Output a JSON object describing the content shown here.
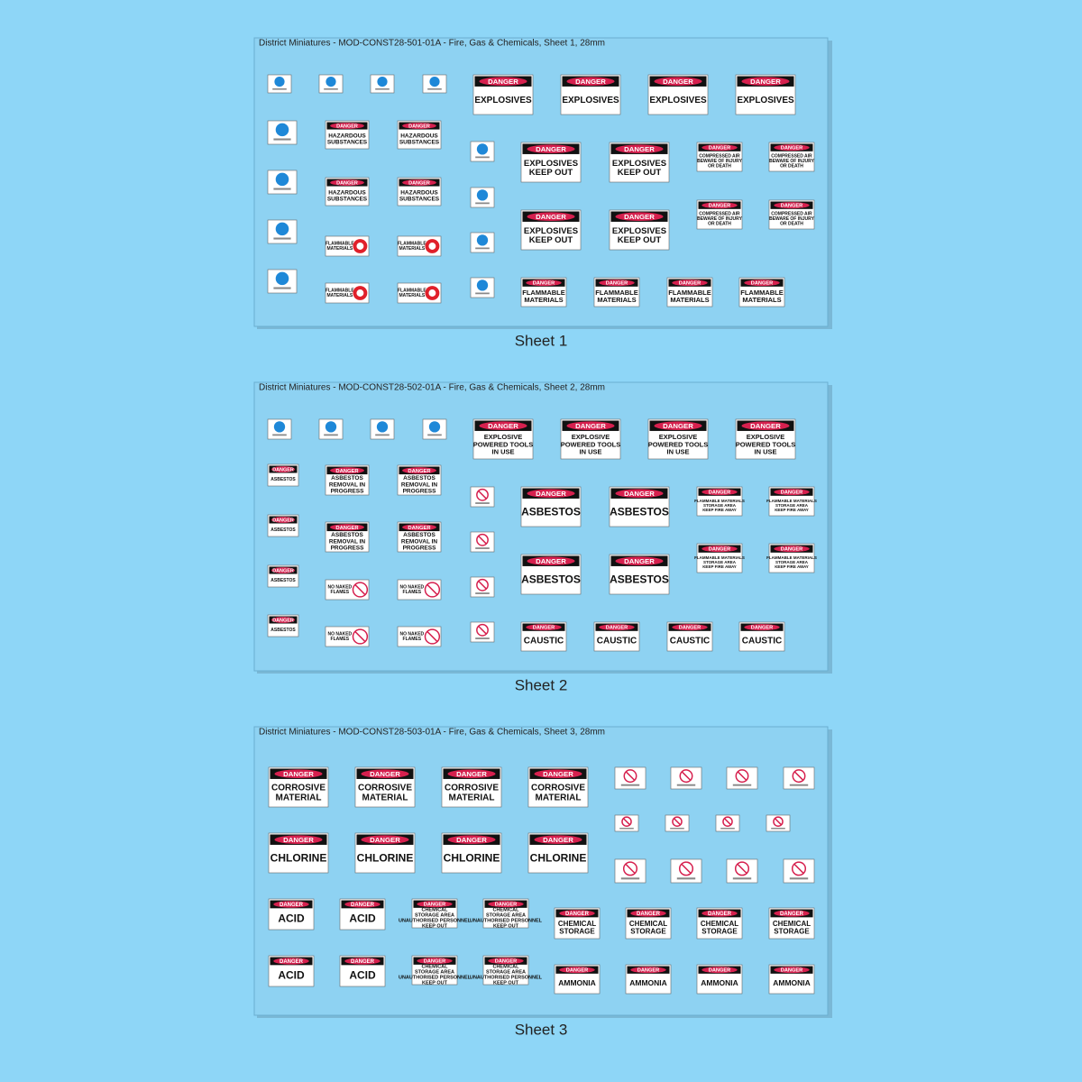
{
  "sheets": [
    {
      "title": "District Miniatures - MOD-CONST28-501-01A - Fire, Gas & Chemicals, Sheet 1, 28mm",
      "caption": "Sheet 1",
      "signs": [
        {
          "header": "DANGER",
          "lines": [
            "EXPLOSIVES"
          ]
        },
        {
          "header": "DANGER",
          "lines": [
            "HAZARDOUS",
            "SUBSTANCES"
          ]
        },
        {
          "header": "DANGER",
          "lines": [
            "EXPLOSIVES",
            "KEEP OUT"
          ]
        },
        {
          "header": "DANGER",
          "lines": [
            "COMPRESSED AIR",
            "BEWARE OF INJURY",
            "OR DEATH"
          ]
        },
        {
          "lines": [
            "FLAMMABLE",
            "MATERIALS"
          ]
        },
        {
          "header": "DANGER",
          "lines": [
            "FLAMMABLE",
            "MATERIALS"
          ]
        }
      ]
    },
    {
      "title": "District Miniatures - MOD-CONST28-502-01A - Fire, Gas & Chemicals, Sheet 2, 28mm",
      "caption": "Sheet 2",
      "signs": [
        {
          "header": "DANGER",
          "lines": [
            "EXPLOSIVE",
            "POWERED TOOLS",
            "IN USE"
          ]
        },
        {
          "header": "DANGER",
          "lines": [
            "ASBESTOS"
          ]
        },
        {
          "header": "DANGER",
          "lines": [
            "ASBESTOS",
            "REMOVAL IN",
            "PROGRESS"
          ]
        },
        {
          "header": "DANGER",
          "lines": [
            "ASBESTOS"
          ]
        },
        {
          "header": "DANGER",
          "lines": [
            "FLAMMABLE MATERIALS",
            "STORAGE AREA",
            "KEEP FIRE AWAY"
          ]
        },
        {
          "lines": [
            "NO NAKED",
            "FLAMES"
          ]
        },
        {
          "header": "DANGER",
          "lines": [
            "CAUSTIC"
          ]
        }
      ]
    },
    {
      "title": "District Miniatures - MOD-CONST28-503-01A - Fire, Gas & Chemicals, Sheet 3, 28mm",
      "caption": "Sheet 3",
      "signs": [
        {
          "header": "DANGER",
          "lines": [
            "CORROSIVE",
            "MATERIAL"
          ]
        },
        {
          "header": "DANGER",
          "lines": [
            "CHLORINE"
          ]
        },
        {
          "header": "DANGER",
          "lines": [
            "ACID"
          ]
        },
        {
          "header": "DANGER",
          "lines": [
            "CHEMICAL",
            "STORAGE AREA",
            "UNAUTHORISED PERSONNEL",
            "KEEP OUT"
          ]
        },
        {
          "header": "DANGER",
          "lines": [
            "CHEMICAL",
            "STORAGE"
          ]
        },
        {
          "header": "DANGER",
          "lines": [
            "AMMONIA"
          ]
        }
      ]
    }
  ]
}
